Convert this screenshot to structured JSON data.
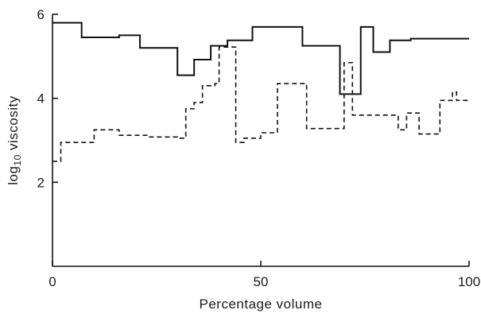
{
  "chart_data": {
    "type": "line",
    "step": true,
    "xlabel": "Percentage volume",
    "ylabel_main": "log",
    "ylabel_sub": "10",
    "ylabel_rest": " viscosity",
    "xlim": [
      0,
      100
    ],
    "ylim": [
      0,
      6
    ],
    "xticks": [
      0,
      50,
      100
    ],
    "yticks": [
      2,
      4,
      6
    ],
    "grid": false,
    "series": [
      {
        "style": "solid",
        "x": [
          0,
          7,
          16,
          21,
          30,
          34,
          38,
          42,
          48,
          60,
          69,
          74,
          77,
          81,
          86,
          100
        ],
        "y": [
          5.8,
          5.45,
          5.5,
          5.2,
          4.55,
          4.92,
          5.25,
          5.38,
          5.7,
          5.25,
          4.1,
          5.7,
          5.1,
          5.38,
          5.42,
          5.42
        ]
      },
      {
        "style": "dashed",
        "x": [
          0,
          2,
          10,
          16,
          23,
          30,
          32,
          34,
          36,
          39,
          40,
          44,
          46,
          50,
          54,
          57,
          61,
          67,
          70,
          72,
          75,
          82,
          83,
          85,
          88,
          91,
          93,
          96,
          97,
          100
        ],
        "y": [
          2.5,
          2.95,
          3.25,
          3.12,
          3.08,
          3.05,
          3.75,
          3.9,
          4.3,
          4.35,
          5.22,
          2.95,
          3.05,
          3.18,
          4.35,
          4.35,
          3.28,
          3.28,
          4.85,
          3.6,
          3.6,
          3.6,
          3.25,
          3.65,
          3.15,
          3.15,
          3.95,
          4.15,
          3.95,
          3.95
        ]
      }
    ]
  }
}
